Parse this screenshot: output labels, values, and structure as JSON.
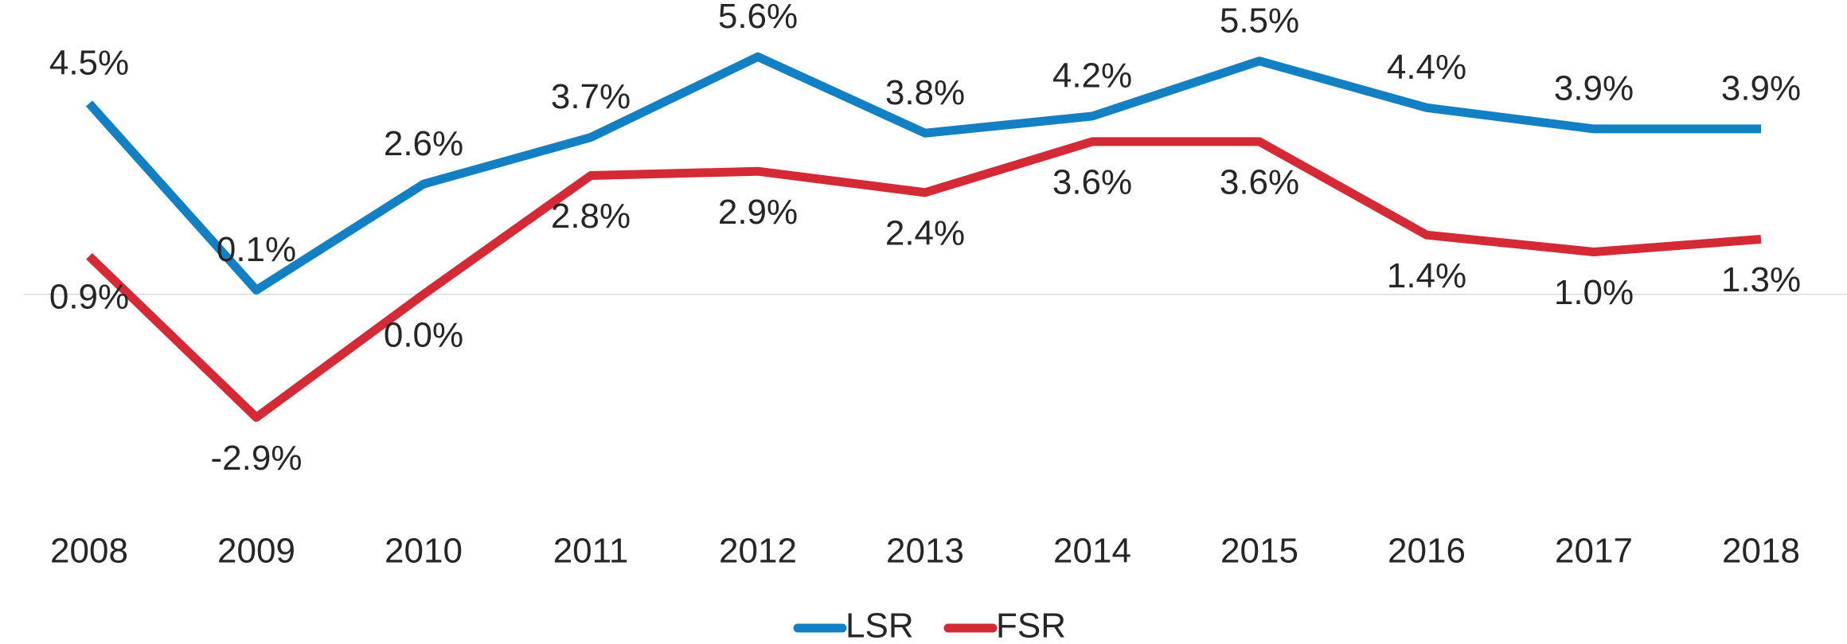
{
  "chart_data": {
    "type": "line",
    "categories": [
      "2008",
      "2009",
      "2010",
      "2011",
      "2012",
      "2013",
      "2014",
      "2015",
      "2016",
      "2017",
      "2018"
    ],
    "series": [
      {
        "name": "LSR",
        "color": "#1380c4",
        "values": [
          4.5,
          0.1,
          2.6,
          3.7,
          5.6,
          3.8,
          4.2,
          5.5,
          4.4,
          3.9,
          3.9
        ],
        "value_labels": [
          "4.5%",
          "0.1%",
          "2.6%",
          "3.7%",
          "5.6%",
          "3.8%",
          "4.2%",
          "5.5%",
          "4.4%",
          "3.9%",
          "3.9%"
        ]
      },
      {
        "name": "FSR",
        "color": "#d42a35",
        "values": [
          0.9,
          -2.9,
          0.0,
          2.8,
          2.9,
          2.4,
          3.6,
          3.6,
          1.4,
          1.0,
          1.3
        ],
        "value_labels": [
          "0.9%",
          "-2.9%",
          "0.0%",
          "2.8%",
          "2.9%",
          "2.4%",
          "3.6%",
          "3.6%",
          "1.4%",
          "1.0%",
          "1.3%"
        ]
      }
    ],
    "ylim": [
      -4,
      6
    ],
    "legend": "bottom"
  }
}
